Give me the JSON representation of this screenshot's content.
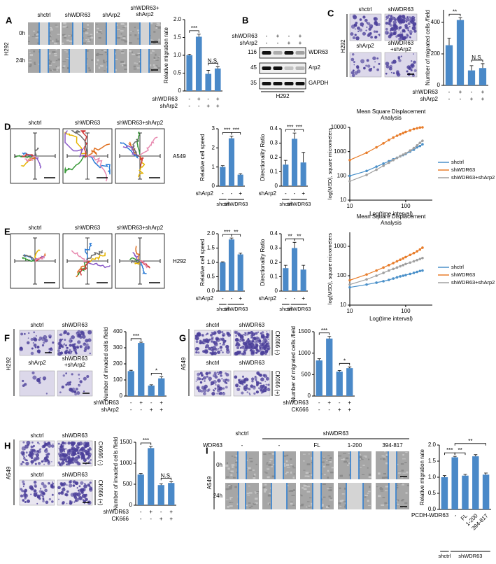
{
  "panels": {
    "A": {
      "letter": "A",
      "cell_line": "H292",
      "columns": [
        "shctrl",
        "shWDR63",
        "shArp2",
        "shWDR63+\nshArp2"
      ],
      "rows": [
        "0h",
        "24h"
      ],
      "chart": {
        "type": "bar",
        "ylabel": "Relative migration rate",
        "ylim": [
          0,
          2
        ],
        "yticks": [
          0,
          0.5,
          {
            "value": 1,
            "label": "1.0"
          },
          1.5,
          {
            "value": 2,
            "label": "2.0"
          }
        ],
        "values": [
          1.0,
          1.52,
          0.48,
          0.63
        ],
        "errors": [
          0.03,
          0.07,
          0.1,
          0.05
        ],
        "color": "#4a89c8",
        "significance": [
          "***",
          "N.S."
        ],
        "conditions": [
          {
            "name": "shWDR63",
            "signs": [
              "-",
              "+",
              "-",
              "+"
            ]
          },
          {
            "name": "shArp2",
            "signs": [
              "-",
              "-",
              "+",
              "+"
            ]
          }
        ]
      }
    },
    "B": {
      "letter": "B",
      "conditions": [
        {
          "name": "shWDR63",
          "signs": [
            "-",
            "+",
            "-",
            "+"
          ]
        },
        {
          "name": "shArp2",
          "signs": [
            "-",
            "-",
            "+",
            "+"
          ]
        }
      ],
      "markers": [
        116,
        45,
        35
      ],
      "bands": [
        "WDR63",
        "Arp2",
        "GAPDH"
      ],
      "cell_line": "H292"
    },
    "C": {
      "letter": "C",
      "cell_line": "H292",
      "images": [
        "shctrl",
        "shWDR63",
        "shArp2",
        "shWDR63\n+shArp2"
      ],
      "chart": {
        "type": "bar",
        "ylabel": "Number of migrated cells /field",
        "ylim": [
          0,
          480
        ],
        "yticks": [
          0,
          200,
          400
        ],
        "values": [
          255,
          415,
          95,
          110
        ],
        "errors": [
          45,
          15,
          30,
          28
        ],
        "color": "#4a89c8",
        "significance": [
          "**",
          "N.S."
        ],
        "conditions": [
          {
            "name": "shWDR63",
            "signs": [
              "-",
              "+",
              "-",
              "+"
            ]
          },
          {
            "name": "shArp2",
            "signs": [
              "-",
              "-",
              "+",
              "+"
            ]
          }
        ]
      }
    },
    "D": {
      "letter": "D",
      "cell_line": "A549",
      "images": [
        "shctrl",
        "shWDR63",
        "shWDR63+shArp2"
      ],
      "speed": {
        "type": "bar",
        "ylabel": "Relative cell speed",
        "ylim": [
          0,
          3
        ],
        "yticks": [
          0,
          1,
          2,
          3
        ],
        "values": [
          1.0,
          2.5,
          0.6
        ],
        "errors": [
          0.07,
          0.12,
          0.05
        ],
        "color": "#4a89c8",
        "significance": [
          "***",
          "***"
        ],
        "conditions": [
          {
            "name": "shArp2",
            "signs": [
              "-",
              "-",
              "+"
            ]
          }
        ],
        "groups": [
          "shctrl",
          "shWDR63"
        ]
      },
      "directionality": {
        "type": "bar",
        "ylabel": "Directionality Ratio",
        "ylim": [
          0,
          0.4
        ],
        "yticks": [
          0,
          0.1,
          0.2,
          0.3,
          0.4
        ],
        "values": [
          0.15,
          0.33,
          0.165
        ],
        "errors": [
          0.03,
          0.04,
          0.07
        ],
        "color": "#4a89c8",
        "significance": [
          "***",
          "***"
        ],
        "conditions": [
          {
            "name": "shArp2",
            "signs": [
              "-",
              "-",
              "+"
            ]
          }
        ],
        "groups": [
          "shctrl",
          "shWDR63"
        ]
      },
      "msd": {
        "type": "line",
        "title": "Mean Square Displacement\nAnalysis",
        "xlabel": "Log(time interval)",
        "ylabel": "log(MSD), square micrometers",
        "log_x": true,
        "log_y": true,
        "xlim": [
          10,
          300
        ],
        "xticks": [
          10,
          100
        ],
        "ylim": [
          10,
          10000
        ],
        "yticks": [
          10,
          100,
          1000,
          10000
        ],
        "x": [
          10,
          20,
          30,
          40,
          50,
          60,
          70,
          80,
          90,
          100,
          120,
          140,
          160,
          180,
          200
        ],
        "series": [
          {
            "name": "shctrl",
            "color": "#4a90c9",
            "values": [
              100,
              160,
              240,
              320,
              400,
              480,
              560,
              640,
              720,
              800,
              1000,
              1200,
              1500,
              1700,
              2000
            ]
          },
          {
            "name": "shWDR63",
            "color": "#e87d2b",
            "values": [
              450,
              900,
              1500,
              2200,
              3000,
              3800,
              4500,
              5200,
              5800,
              6500,
              7500,
              8500,
              9200,
              9800,
              10000
            ]
          },
          {
            "name": "shWDR63+shArp2",
            "color": "#a0a0a0",
            "values": [
              60,
              110,
              180,
              260,
              350,
              450,
              550,
              650,
              750,
              850,
              1100,
              1400,
              1800,
              2300,
              2800
            ]
          }
        ]
      }
    },
    "E": {
      "letter": "E",
      "cell_line": "H292",
      "images": [
        "shctrl",
        "shWDR63",
        "shWDR63+shArp2"
      ],
      "speed": {
        "type": "bar",
        "ylabel": "Relative cell speed",
        "ylim": [
          0,
          2
        ],
        "yticks": [
          {
            "value": 0,
            "label": "0.0"
          },
          0.5,
          {
            "value": 1,
            "label": "1.0"
          },
          1.5,
          {
            "value": 2,
            "label": "2.0"
          }
        ],
        "values": [
          1.0,
          1.8,
          1.28
        ],
        "errors": [
          0.02,
          0.05,
          0.04
        ],
        "color": "#4a89c8",
        "significance": [
          "***",
          "**"
        ],
        "conditions": [
          {
            "name": "shArp2",
            "signs": [
              "-",
              "-",
              "+"
            ]
          }
        ],
        "groups": [
          "shctrl",
          "shWDR63"
        ]
      },
      "directionality": {
        "type": "bar",
        "ylabel": "Directionality Ratio",
        "ylim": [
          0,
          0.4
        ],
        "yticks": [
          0,
          0.1,
          0.2,
          0.3,
          0.4
        ],
        "values": [
          0.16,
          0.3,
          0.15
        ],
        "errors": [
          0.02,
          0.04,
          0.03
        ],
        "color": "#4a89c8",
        "significance": [
          "**",
          "**"
        ],
        "conditions": [
          {
            "name": "shArp2",
            "signs": [
              "-",
              "-",
              "+"
            ]
          }
        ],
        "groups": [
          "shctrl",
          "shWDR63"
        ]
      },
      "msd": {
        "type": "line",
        "title": "Mean Square Displacement\nAnalysis",
        "xlabel": "Log(time interval)",
        "ylabel": "log(MSD), square micrometers",
        "log_x": true,
        "log_y": true,
        "xlim": [
          10,
          300
        ],
        "xticks": [
          10,
          100
        ],
        "ylim": [
          10,
          3000
        ],
        "yticks": [
          10,
          100,
          1000
        ],
        "x": [
          10,
          20,
          30,
          40,
          50,
          60,
          70,
          80,
          90,
          100,
          120,
          140,
          160,
          180,
          200
        ],
        "series": [
          {
            "name": "shctrl",
            "color": "#4a90c9",
            "values": [
              40,
              50,
              58,
              65,
              72,
              80,
              88,
              95,
              100,
              105,
              115,
              125,
              135,
              145,
              150
            ]
          },
          {
            "name": "shWDR63",
            "color": "#e87d2b",
            "values": [
              70,
              110,
              150,
              190,
              230,
              270,
              310,
              350,
              390,
              430,
              510,
              590,
              680,
              780,
              900
            ]
          },
          {
            "name": "shWDR63+shArp2",
            "color": "#a0a0a0",
            "values": [
              50,
              75,
              100,
              125,
              150,
              170,
              190,
              210,
              230,
              250,
              280,
              310,
              340,
              370,
              400
            ]
          }
        ]
      }
    },
    "F": {
      "letter": "F",
      "cell_line": "H292",
      "images": [
        "shctrl",
        "shWDR63",
        "shArp2",
        "shWDR63\n+shArp2"
      ],
      "chart": {
        "type": "bar",
        "ylabel": "Number of invaded cells /field",
        "ylim": [
          0,
          400
        ],
        "yticks": [
          0,
          100,
          200,
          300,
          400
        ],
        "values": [
          155,
          330,
          65,
          110
        ],
        "errors": [
          5,
          5,
          5,
          10
        ],
        "color": "#4a89c8",
        "significance": [
          "***",
          "*"
        ],
        "conditions": [
          {
            "name": "shWDR63",
            "signs": [
              "-",
              "+",
              "-",
              "+"
            ]
          },
          {
            "name": "shArp2",
            "signs": [
              "-",
              "-",
              "+",
              "+"
            ]
          }
        ]
      }
    },
    "G": {
      "letter": "G",
      "cell_line": "A549",
      "images": [
        "shctrl",
        "shWDR63",
        "shctrl",
        "shWDR63"
      ],
      "rows": [
        "CK666 (-)",
        "CK666 (+)"
      ],
      "chart": {
        "type": "bar",
        "ylabel": "Number of migrated cells /field",
        "ylim": [
          0,
          1500
        ],
        "yticks": [
          0,
          500,
          1000,
          1500
        ],
        "values": [
          830,
          1340,
          570,
          650
        ],
        "errors": [
          40,
          50,
          25,
          30
        ],
        "color": "#4a89c8",
        "significance": [
          "***",
          "*"
        ],
        "conditions": [
          {
            "name": "shWDR63",
            "signs": [
              "-",
              "+",
              "-",
              "+"
            ]
          },
          {
            "name": "CK666",
            "signs": [
              "-",
              "-",
              "+",
              "+"
            ]
          }
        ]
      }
    },
    "H": {
      "letter": "H",
      "cell_line": "A549",
      "images": [
        "shctrl",
        "shWDR63",
        "shctrl",
        "shWDR63"
      ],
      "rows": [
        "CK666 (-)",
        "CK666 (+)"
      ],
      "chart": {
        "type": "bar",
        "ylabel": "Number of invaded cells /field",
        "ylim": [
          0,
          1500
        ],
        "yticks": [
          0,
          500,
          1000,
          1500
        ],
        "values": [
          730,
          1360,
          480,
          530
        ],
        "errors": [
          25,
          40,
          30,
          30
        ],
        "color": "#4a89c8",
        "significance": [
          "***",
          "N.S."
        ],
        "conditions": [
          {
            "name": "shWDR63",
            "signs": [
              "-",
              "+",
              "-",
              "+"
            ]
          },
          {
            "name": "CK666",
            "signs": [
              "-",
              "-",
              "+",
              "+"
            ]
          }
        ]
      }
    },
    "I": {
      "letter": "I",
      "cell_line": "A549",
      "groups": [
        "shctrl",
        "shWDR63"
      ],
      "row_label": "WDR63",
      "columns": [
        "-",
        "-",
        "FL",
        "1-200",
        "394-817"
      ],
      "rows": [
        "0h",
        "24h"
      ],
      "chart": {
        "type": "bar",
        "ylabel": "Relative migration rate",
        "ylim": [
          0,
          2
        ],
        "yticks": [
          {
            "value": 0,
            "label": "0.0"
          },
          0.5,
          {
            "value": 1,
            "label": "1.0"
          },
          1.5,
          {
            "value": 2,
            "label": "2.0"
          }
        ],
        "values": [
          1.0,
          1.62,
          1.05,
          1.65,
          1.08
        ],
        "errors": [
          0.05,
          0.03,
          0.04,
          0.05,
          0.05
        ],
        "color": "#4a89c8",
        "significance": [
          "***",
          "**",
          "**"
        ],
        "category_title": "PCDH-WDR63",
        "categories": [
          null,
          "-",
          "FL",
          "1-200",
          "394-817"
        ],
        "groups": [
          "shctrl",
          "shWDR63"
        ]
      }
    }
  }
}
